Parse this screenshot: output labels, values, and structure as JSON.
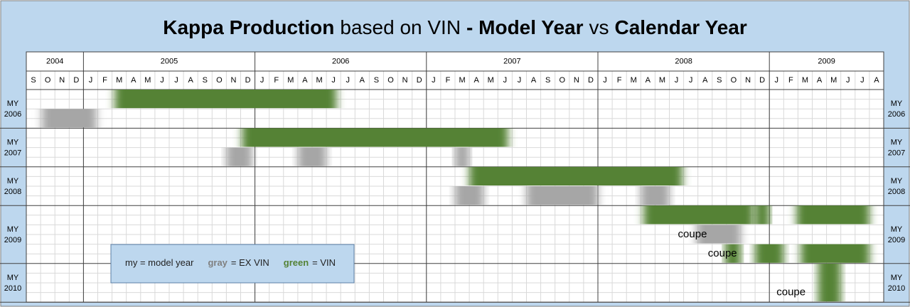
{
  "chart_data": {
    "type": "gantt",
    "title_parts": [
      {
        "text": "Kappa Production",
        "bold": true
      },
      {
        "text": "based on VIN",
        "bold": false
      },
      {
        "text": "- Model Year",
        "bold": true
      },
      {
        "text": "vs",
        "bold": false
      },
      {
        "text": "Calendar Year",
        "bold": true
      }
    ],
    "year_groups": [
      {
        "label": "2004",
        "months": 4
      },
      {
        "label": "2005",
        "months": 12
      },
      {
        "label": "2006",
        "months": 12
      },
      {
        "label": "2007",
        "months": 12
      },
      {
        "label": "2008",
        "months": 12
      },
      {
        "label": "2009",
        "months": 8
      }
    ],
    "categories": [
      "S",
      "O",
      "N",
      "D",
      "J",
      "F",
      "M",
      "A",
      "M",
      "J",
      "J",
      "A",
      "S",
      "O",
      "N",
      "D",
      "J",
      "F",
      "M",
      "A",
      "M",
      "J",
      "J",
      "A",
      "S",
      "O",
      "N",
      "D",
      "J",
      "F",
      "M",
      "A",
      "M",
      "J",
      "J",
      "A",
      "S",
      "O",
      "N",
      "D",
      "J",
      "F",
      "M",
      "A",
      "M",
      "J",
      "J",
      "A",
      "S",
      "O",
      "N",
      "D",
      "J",
      "F",
      "M",
      "A",
      "M",
      "J",
      "J",
      "A"
    ],
    "rows": [
      {
        "label": [
          "MY",
          "2006"
        ],
        "lanes": 2
      },
      {
        "label": [
          "MY",
          "2007"
        ],
        "lanes": 2
      },
      {
        "label": [
          "MY",
          "2008"
        ],
        "lanes": 2
      },
      {
        "label": [
          "MY",
          "2009"
        ],
        "lanes": 3
      },
      {
        "label": [
          "MY",
          "2010"
        ],
        "lanes": 2
      }
    ],
    "colors": {
      "green": "#548235",
      "gray": "#a6a6a6"
    },
    "bars": [
      {
        "row": 0,
        "lane": 0,
        "color": "green",
        "start": 6.2,
        "end": 21.7
      },
      {
        "row": 0,
        "lane": 1,
        "color": "gray",
        "start": 1.1,
        "end": 4.9
      },
      {
        "row": 1,
        "lane": 0,
        "color": "green",
        "start": 15.1,
        "end": 33.7
      },
      {
        "row": 1,
        "lane": 1,
        "color": "gray",
        "start": 14,
        "end": 15.8
      },
      {
        "row": 1,
        "lane": 1,
        "color": "gray",
        "start": 19,
        "end": 21
      },
      {
        "row": 1,
        "lane": 1,
        "color": "gray",
        "start": 30,
        "end": 31
      },
      {
        "row": 2,
        "lane": 0,
        "color": "green",
        "start": 31,
        "end": 45.9
      },
      {
        "row": 2,
        "lane": 1,
        "color": "gray",
        "start": 30,
        "end": 32
      },
      {
        "row": 2,
        "lane": 1,
        "color": "gray",
        "start": 35,
        "end": 40
      },
      {
        "row": 2,
        "lane": 1,
        "color": "gray",
        "start": 43,
        "end": 45
      },
      {
        "row": 3,
        "lane": 0,
        "color": "green",
        "start": 43.2,
        "end": 50.9
      },
      {
        "row": 3,
        "lane": 0,
        "color": "green",
        "start": 51,
        "end": 52
      },
      {
        "row": 3,
        "lane": 0,
        "color": "green",
        "start": 53.9,
        "end": 59
      },
      {
        "row": 3,
        "lane": 1,
        "color": "gray",
        "start": 46.9,
        "end": 50
      },
      {
        "row": 3,
        "lane": 2,
        "color": "green",
        "start": 48.9,
        "end": 50
      },
      {
        "row": 3,
        "lane": 2,
        "color": "green",
        "start": 51,
        "end": 53
      },
      {
        "row": 3,
        "lane": 2,
        "color": "green",
        "start": 54.2,
        "end": 59
      },
      {
        "row": 4,
        "lane": 0,
        "color": "green",
        "start": 55.4,
        "end": 57,
        "lane_span": 2
      }
    ],
    "annotations": [
      {
        "text": "coupe",
        "row": 3,
        "lane": 1,
        "at": 45.6
      },
      {
        "text": "coupe",
        "row": 3,
        "lane": 2,
        "at": 47.7
      },
      {
        "text": "coupe",
        "row": 4,
        "lane": 1,
        "at": 52.5
      }
    ],
    "legend": [
      {
        "text": "my = model year",
        "bold": false
      },
      {
        "text": "gray",
        "bold": true,
        "color": "#808080"
      },
      {
        "text": "= EX VIN",
        "bold": false
      },
      {
        "text": "green",
        "bold": true,
        "color": "#548235"
      },
      {
        "text": "= VIN",
        "bold": false
      }
    ]
  }
}
